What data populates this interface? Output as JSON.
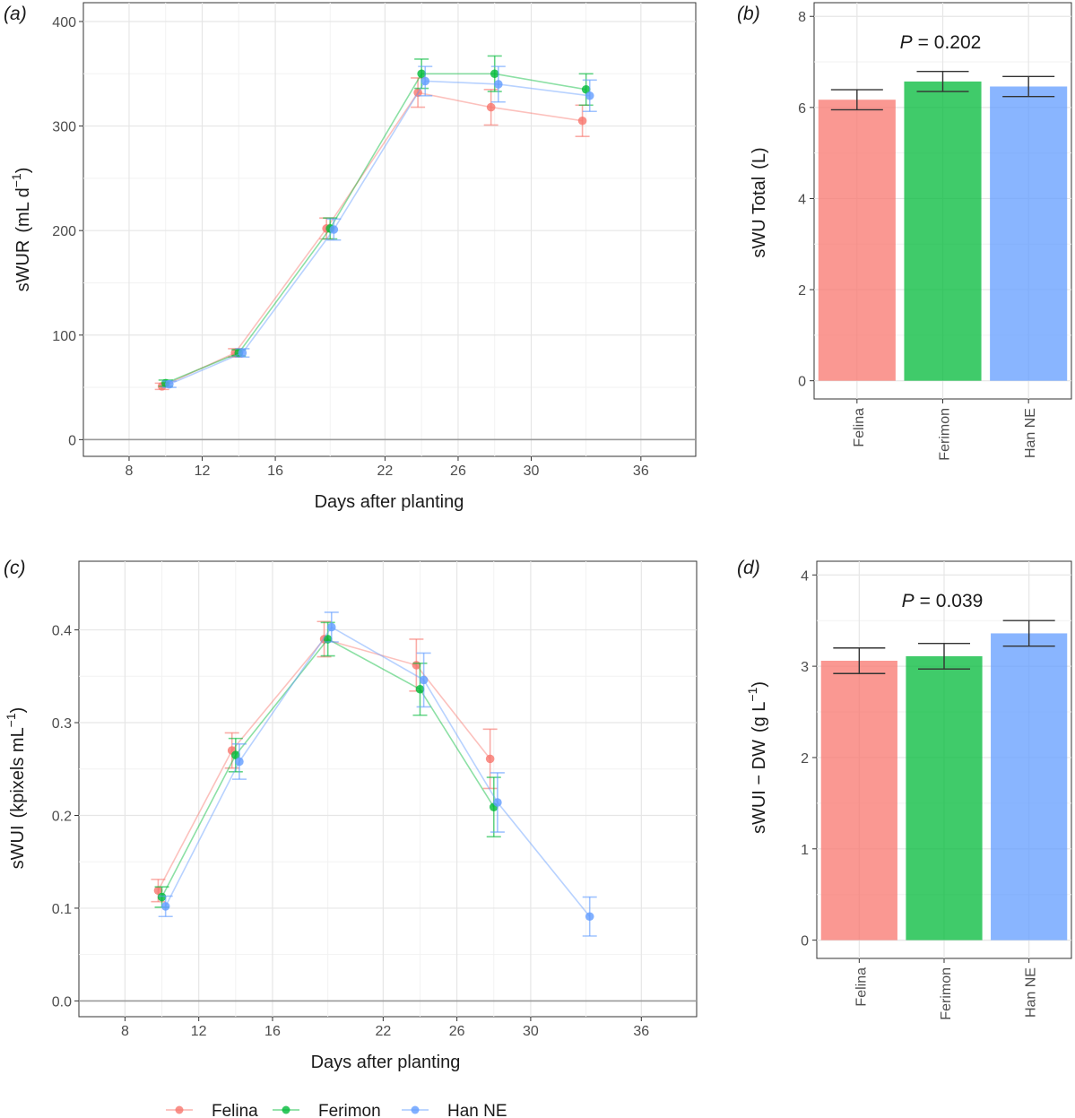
{
  "colors": {
    "Felina": "#f8766d",
    "Ferimon": "#00ba38",
    "Han NE": "#619cff"
  },
  "legend": {
    "items": [
      "Felina",
      "Ferimon",
      "Han NE"
    ]
  },
  "chart_data": [
    {
      "id": "a",
      "type": "line",
      "panel_label": "a",
      "xlabel": "Days after planting",
      "ylabel": "sWUR",
      "xlim": [
        5.5,
        39
      ],
      "ylim": [
        -16,
        418
      ],
      "xticks": [
        8,
        12,
        16,
        22,
        26,
        30,
        36
      ],
      "xtick_labels": [
        "8",
        "12",
        "16",
        "22",
        "26",
        "30",
        "36"
      ],
      "yticks": [
        0,
        100,
        200,
        300,
        400
      ],
      "ytick_labels": [
        "0",
        "100",
        "200",
        "300",
        "400"
      ],
      "series": [
        {
          "name": "Felina",
          "x": [
            9.8,
            13.8,
            18.8,
            23.8,
            27.8,
            32.8
          ],
          "y": [
            51,
            83,
            202,
            332,
            318,
            305
          ],
          "err": [
            3,
            4,
            10,
            14,
            17,
            15
          ]
        },
        {
          "name": "Ferimon",
          "x": [
            10,
            14,
            19,
            24,
            28,
            33
          ],
          "y": [
            54,
            83,
            202,
            350,
            350,
            335
          ],
          "err": [
            3,
            3,
            10,
            14,
            17,
            15
          ]
        },
        {
          "name": "Han NE",
          "x": [
            10.2,
            14.2,
            19.2,
            24.2,
            28.2,
            33.2
          ],
          "y": [
            53,
            83,
            201,
            343,
            340,
            329
          ],
          "err": [
            3,
            4,
            10,
            14,
            17,
            15
          ]
        }
      ]
    },
    {
      "id": "b",
      "type": "bar",
      "panel_label": "b",
      "categories": [
        "Felina",
        "Ferimon",
        "Han NE"
      ],
      "values": [
        6.17,
        6.57,
        6.46
      ],
      "errors": [
        0.22,
        0.22,
        0.22
      ],
      "ylabel": "sWU Total",
      "ylabel_unit": "(L)",
      "ylim": [
        -0.4,
        8.3
      ],
      "yticks": [
        0,
        2,
        4,
        6,
        8
      ],
      "ytick_labels": [
        "0",
        "2",
        "4",
        "6",
        "8"
      ],
      "annotation": {
        "p": "P",
        "eq": "= 0.202"
      }
    },
    {
      "id": "c",
      "type": "line",
      "panel_label": "c",
      "xlabel": "Days after planting",
      "ylabel": "sWUI",
      "xlim": [
        5.5,
        39
      ],
      "ylim": [
        -0.017,
        0.474
      ],
      "xticks": [
        8,
        12,
        16,
        22,
        26,
        30,
        36
      ],
      "xtick_labels": [
        "8",
        "12",
        "16",
        "22",
        "26",
        "30",
        "36"
      ],
      "yticks": [
        0,
        0.1,
        0.2,
        0.3,
        0.4
      ],
      "ytick_labels": [
        "0.0",
        "0.1",
        "0.2",
        "0.3",
        "0.4"
      ],
      "series": [
        {
          "name": "Felina",
          "x": [
            9.8,
            13.8,
            18.8,
            23.8,
            27.8
          ],
          "y": [
            0.119,
            0.27,
            0.39,
            0.362,
            0.261
          ],
          "err": [
            0.012,
            0.019,
            0.019,
            0.028,
            0.032
          ]
        },
        {
          "name": "Ferimon",
          "x": [
            10,
            14,
            19,
            24,
            28
          ],
          "y": [
            0.112,
            0.265,
            0.39,
            0.336,
            0.209
          ],
          "err": [
            0.011,
            0.018,
            0.018,
            0.028,
            0.032
          ]
        },
        {
          "name": "Han NE",
          "x": [
            10.2,
            14.2,
            19.2,
            24.2,
            28.2,
            33.2
          ],
          "y": [
            0.102,
            0.258,
            0.403,
            0.346,
            0.214,
            0.091
          ],
          "err": [
            0.011,
            0.019,
            0.016,
            0.029,
            0.032,
            0.021
          ]
        }
      ]
    },
    {
      "id": "d",
      "type": "bar",
      "panel_label": "d",
      "categories": [
        "Felina",
        "Ferimon",
        "Han NE"
      ],
      "values": [
        3.06,
        3.11,
        3.36
      ],
      "errors": [
        0.14,
        0.14,
        0.14
      ],
      "ylabel": "sWUI − DW",
      "ylabel_unit": "(g L",
      "ylim": [
        -0.2,
        4.15
      ],
      "yticks": [
        0,
        1,
        2,
        3,
        4
      ],
      "ytick_labels": [
        "0",
        "1",
        "2",
        "3",
        "4"
      ],
      "annotation": {
        "p": "P",
        "eq": "= 0.039"
      }
    }
  ]
}
